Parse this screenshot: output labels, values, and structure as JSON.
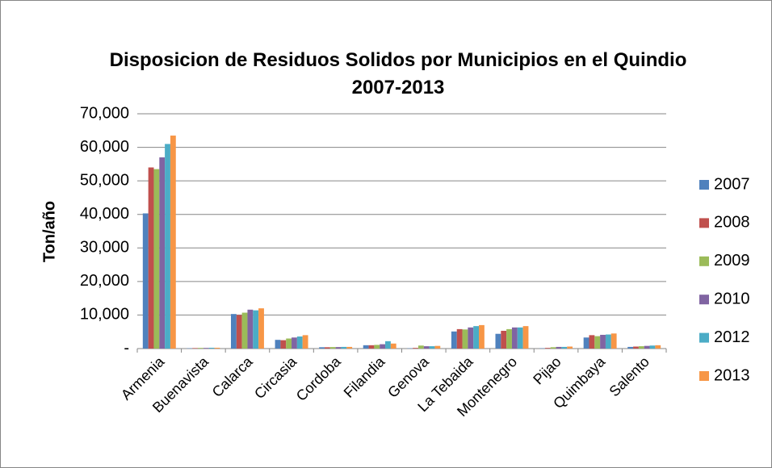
{
  "chart_data": {
    "type": "bar",
    "title": "Disposicion de Residuos Solidos por Municipios en el Quindio 2007-2013",
    "y_label": "Ton/año",
    "categories": [
      "Armenia",
      "Buenavista",
      "Calarca",
      "Circasia",
      "Cordoba",
      "Filandia",
      "Genova",
      "La Tebaida",
      "Montenegro",
      "Pijao",
      "Quimbaya",
      "Salento"
    ],
    "series": [
      {
        "name": "2007",
        "color": "#4f81bd",
        "values": [
          40300,
          100,
          10300,
          2600,
          400,
          1000,
          100,
          5100,
          4400,
          100,
          3300,
          500
        ]
      },
      {
        "name": "2008",
        "color": "#c0504d",
        "values": [
          54000,
          150,
          10000,
          2500,
          400,
          1000,
          200,
          5800,
          5300,
          200,
          4000,
          600
        ]
      },
      {
        "name": "2009",
        "color": "#9bbb59",
        "values": [
          53500,
          200,
          10700,
          3000,
          450,
          1100,
          900,
          5700,
          5800,
          400,
          3700,
          700
        ]
      },
      {
        "name": "2010",
        "color": "#8064a2",
        "values": [
          57000,
          200,
          11600,
          3300,
          450,
          1300,
          700,
          6300,
          6300,
          500,
          4100,
          800
        ]
      },
      {
        "name": "2012",
        "color": "#4bacc6",
        "values": [
          61000,
          250,
          11400,
          3600,
          500,
          2200,
          700,
          6700,
          6300,
          500,
          4200,
          900
        ]
      },
      {
        "name": "2013",
        "color": "#f79646",
        "values": [
          63500,
          250,
          12000,
          4000,
          500,
          1500,
          800,
          7000,
          6700,
          600,
          4500,
          1000
        ]
      }
    ],
    "ylim": [
      0,
      70000
    ],
    "yticks": [
      {
        "value": 0,
        "label": "-"
      },
      {
        "value": 10000,
        "label": "10,000"
      },
      {
        "value": 20000,
        "label": "20,000"
      },
      {
        "value": 30000,
        "label": "30,000"
      },
      {
        "value": 40000,
        "label": "40,000"
      },
      {
        "value": 50000,
        "label": "50,000"
      },
      {
        "value": 60000,
        "label": "60,000"
      },
      {
        "value": 70000,
        "label": "70,000"
      }
    ],
    "grid": true,
    "legend": "right"
  }
}
